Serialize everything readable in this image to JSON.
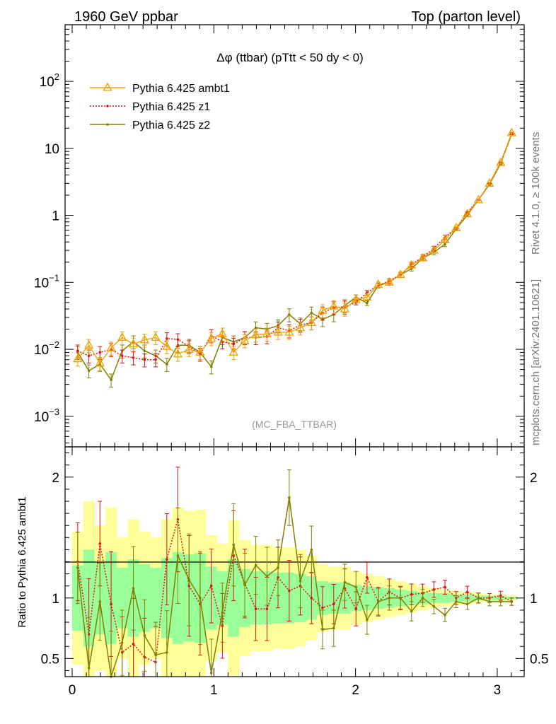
{
  "header": {
    "left": "1960 GeV ppbar",
    "right": "Top (parton level)"
  },
  "side_labels": {
    "rivet": "Rivet 4.1.0, ≥ 100k events",
    "mcplots": "mcplots.cern.ch [arXiv:2401.10621]"
  },
  "chart_data": [
    {
      "type": "line",
      "title": "Δφ (ttbar) (pTtt < 50 dy < 0)",
      "analysis_tag": "(MC_FBA_TTBAR)",
      "xlabel": "",
      "ylabel": "",
      "yscale": "log",
      "xlim": [
        -0.05,
        3.19
      ],
      "ylim": [
        0.00035,
        700
      ],
      "y_ticks": [
        {
          "value": 0.001,
          "base": "10",
          "exp": "−3"
        },
        {
          "value": 0.01,
          "base": "10",
          "exp": "−2"
        },
        {
          "value": 0.1,
          "base": "10",
          "exp": "−1"
        },
        {
          "value": 1,
          "base": "1",
          "exp": ""
        },
        {
          "value": 10,
          "base": "10",
          "exp": ""
        },
        {
          "value": 100,
          "base": "10",
          "exp": "2"
        }
      ],
      "x": [
        0.039,
        0.118,
        0.196,
        0.275,
        0.353,
        0.432,
        0.511,
        0.589,
        0.668,
        0.746,
        0.825,
        0.903,
        0.982,
        1.06,
        1.139,
        1.218,
        1.296,
        1.375,
        1.453,
        1.532,
        1.61,
        1.689,
        1.767,
        1.846,
        1.924,
        2.003,
        2.081,
        2.16,
        2.238,
        2.317,
        2.395,
        2.474,
        2.553,
        2.631,
        2.71,
        2.788,
        2.867,
        2.945,
        3.024,
        3.102
      ],
      "series": [
        {
          "name": "Pythia 6.425 ambt1",
          "color": "#f0a000",
          "marker": "triangle",
          "values": [
            0.0072,
            0.0115,
            0.0062,
            0.0105,
            0.015,
            0.012,
            0.0138,
            0.015,
            0.011,
            0.0085,
            0.01,
            0.009,
            0.0145,
            0.017,
            0.009,
            0.0135,
            0.0165,
            0.017,
            0.018,
            0.018,
            0.021,
            0.025,
            0.038,
            0.044,
            0.04,
            0.055,
            0.06,
            0.093,
            0.1,
            0.13,
            0.18,
            0.23,
            0.3,
            0.43,
            0.65,
            1.05,
            1.7,
            3.0,
            6.1,
            17.0
          ]
        },
        {
          "name": "Pythia 6.425 z1",
          "color": "#e01010",
          "marker": "dot",
          "values": [
            0.0095,
            0.008,
            0.009,
            0.01,
            0.008,
            0.0075,
            0.007,
            0.007,
            0.0145,
            0.014,
            0.011,
            0.0085,
            0.016,
            0.013,
            0.012,
            0.015,
            0.015,
            0.0155,
            0.021,
            0.019,
            0.023,
            0.025,
            0.035,
            0.042,
            0.043,
            0.05,
            0.07,
            0.09,
            0.105,
            0.13,
            0.185,
            0.24,
            0.32,
            0.47,
            0.65,
            1.1,
            1.7,
            3.0,
            6.2,
            16.5
          ]
        },
        {
          "name": "Pythia 6.425 z2",
          "color": "#808000",
          "marker": "dot",
          "values": [
            0.009,
            0.0048,
            0.006,
            0.0035,
            0.0095,
            0.013,
            0.0095,
            0.008,
            0.006,
            0.0115,
            0.0115,
            0.009,
            0.0055,
            0.015,
            0.013,
            0.015,
            0.021,
            0.02,
            0.0225,
            0.033,
            0.024,
            0.035,
            0.028,
            0.033,
            0.045,
            0.06,
            0.049,
            0.09,
            0.1,
            0.13,
            0.16,
            0.23,
            0.28,
            0.37,
            0.63,
            1.0,
            1.7,
            2.9,
            5.9,
            16.5
          ]
        }
      ]
    },
    {
      "type": "line",
      "title": "",
      "xlabel": "",
      "ylabel": "Ratio to Pythia 6.425 ambt1",
      "xlim": [
        -0.05,
        3.19
      ],
      "ylim": [
        0.35,
        2.25
      ],
      "y_ticks": [
        0.5,
        1,
        2
      ],
      "x_ticks": [
        0,
        1,
        2,
        3
      ],
      "x": [
        0.039,
        0.118,
        0.196,
        0.275,
        0.353,
        0.432,
        0.511,
        0.589,
        0.668,
        0.746,
        0.825,
        0.903,
        0.982,
        1.06,
        1.139,
        1.218,
        1.296,
        1.375,
        1.453,
        1.532,
        1.61,
        1.689,
        1.767,
        1.846,
        1.924,
        2.003,
        2.081,
        2.16,
        2.238,
        2.317,
        2.395,
        2.474,
        2.553,
        2.631,
        2.71,
        2.788,
        2.867,
        2.945,
        3.024,
        3.102
      ],
      "band_inner": [
        0.27,
        0.4,
        0.3,
        0.38,
        0.25,
        0.32,
        0.28,
        0.25,
        0.33,
        0.38,
        0.36,
        0.37,
        0.26,
        0.22,
        0.32,
        0.24,
        0.22,
        0.22,
        0.21,
        0.21,
        0.2,
        0.18,
        0.14,
        0.13,
        0.13,
        0.11,
        0.1,
        0.09,
        0.08,
        0.07,
        0.06,
        0.05,
        0.04,
        0.04,
        0.03,
        0.03,
        0.02,
        0.02,
        0.02,
        0.01
      ],
      "band_outer": [
        0.55,
        0.8,
        0.6,
        0.75,
        0.5,
        0.65,
        0.55,
        0.5,
        0.65,
        0.75,
        0.72,
        0.73,
        0.52,
        0.45,
        0.64,
        0.48,
        0.44,
        0.44,
        0.42,
        0.42,
        0.4,
        0.35,
        0.28,
        0.26,
        0.26,
        0.22,
        0.2,
        0.18,
        0.16,
        0.14,
        0.12,
        0.1,
        0.08,
        0.07,
        0.06,
        0.05,
        0.04,
        0.03,
        0.03,
        0.02
      ],
      "series": [
        {
          "name": "Pythia 6.425 z1",
          "color": "#e01010",
          "values": [
            1.3,
            0.7,
            1.45,
            0.95,
            0.55,
            0.62,
            0.51,
            0.47,
            1.32,
            1.65,
            1.1,
            0.95,
            1.1,
            0.77,
            1.35,
            1.12,
            0.91,
            0.91,
            1.17,
            1.06,
            1.1,
            1.0,
            0.92,
            0.95,
            1.08,
            0.91,
            1.17,
            0.97,
            1.05,
            1.0,
            1.03,
            1.04,
            1.07,
            1.09,
            1.0,
            1.05,
            1.0,
            1.0,
            1.02,
            0.97
          ]
        },
        {
          "name": "Pythia 6.425 z2",
          "color": "#808000",
          "values": [
            1.25,
            0.42,
            0.97,
            0.33,
            0.63,
            1.08,
            0.69,
            0.53,
            0.55,
            1.35,
            1.15,
            1.0,
            0.38,
            0.88,
            1.44,
            1.11,
            1.27,
            1.18,
            1.25,
            1.83,
            1.14,
            1.4,
            0.74,
            0.75,
            1.13,
            1.09,
            0.82,
            0.97,
            1.0,
            1.0,
            0.89,
            1.0,
            0.93,
            0.86,
            0.97,
            0.95,
            1.0,
            0.97,
            0.97,
            0.97
          ]
        }
      ]
    }
  ]
}
